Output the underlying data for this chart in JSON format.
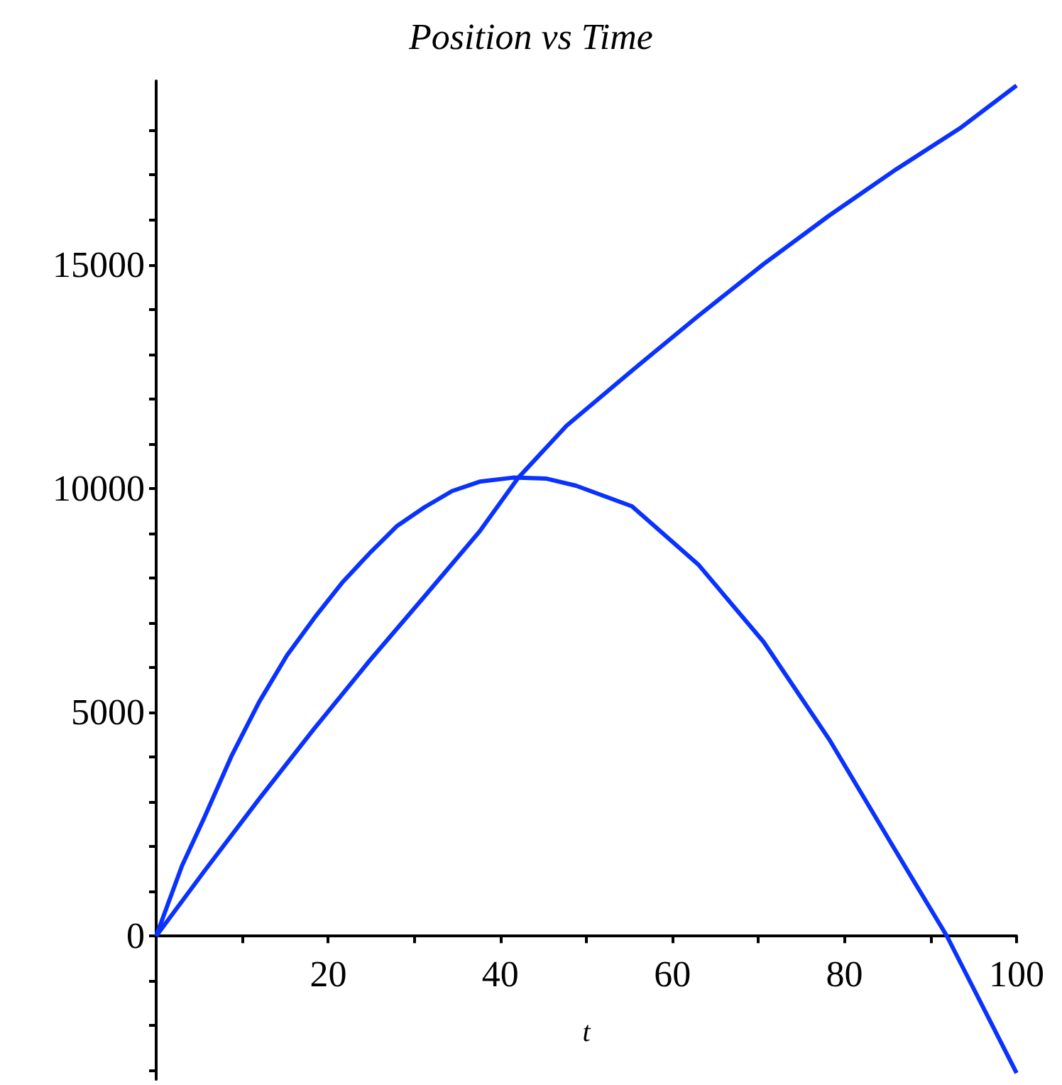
{
  "chart_data": {
    "type": "line",
    "title": "Position vs Time",
    "xlabel": "t",
    "xlim": [
      0,
      100
    ],
    "ylim": [
      -3200,
      19100
    ],
    "xticks": [
      {
        "value": 10,
        "label": null
      },
      20,
      {
        "value": 30,
        "label": null
      },
      40,
      {
        "value": 50,
        "label": null
      },
      60,
      {
        "value": 70,
        "label": null
      },
      80,
      {
        "value": 90,
        "label": null
      },
      100
    ],
    "yticks": [
      {
        "value": -3000,
        "label": null
      },
      {
        "value": -2000,
        "label": null
      },
      {
        "value": -1000,
        "label": null
      },
      0,
      {
        "value": 1000,
        "label": null
      },
      {
        "value": 2000,
        "label": null
      },
      {
        "value": 3000,
        "label": null
      },
      {
        "value": 4000,
        "label": null
      },
      5000,
      {
        "value": 6000,
        "label": null
      },
      {
        "value": 7000,
        "label": null
      },
      {
        "value": 8000,
        "label": null
      },
      {
        "value": 9000,
        "label": null
      },
      10000,
      {
        "value": 11000,
        "label": null
      },
      {
        "value": 12000,
        "label": null
      },
      {
        "value": 13000,
        "label": null
      },
      {
        "value": 14000,
        "label": null
      },
      15000,
      {
        "value": 16000,
        "label": null
      },
      {
        "value": 17000,
        "label": null
      },
      {
        "value": 18000,
        "label": null
      }
    ],
    "series": [
      {
        "color": "#0a32ff",
        "x": [
          0,
          3.0,
          5.6,
          8.8,
          12.0,
          15.2,
          18.4,
          21.6,
          24.8,
          28.0,
          31.2,
          34.4,
          37.6,
          41.5,
          45.3,
          48.8,
          55.3,
          63.0,
          70.6,
          78.2,
          85.8,
          91.9,
          100
        ],
        "values": [
          0,
          1570,
          2650,
          4040,
          5240,
          6270,
          7110,
          7890,
          8550,
          9160,
          9580,
          9940,
          10150,
          10240,
          10220,
          10060,
          9600,
          8300,
          6570,
          4400,
          1950,
          0,
          -3060
        ]
      },
      {
        "color": "#0a32ff",
        "x": [
          0,
          5.6,
          12.0,
          18.4,
          24.8,
          31.2,
          37.6,
          42.1,
          47.7,
          55.3,
          63.0,
          70.6,
          78.2,
          85.8,
          93.4,
          100
        ],
        "values": [
          0,
          1450,
          3070,
          4640,
          6150,
          7590,
          9040,
          10240,
          11400,
          12630,
          13850,
          15010,
          16090,
          17100,
          18040,
          19000
        ]
      }
    ]
  }
}
